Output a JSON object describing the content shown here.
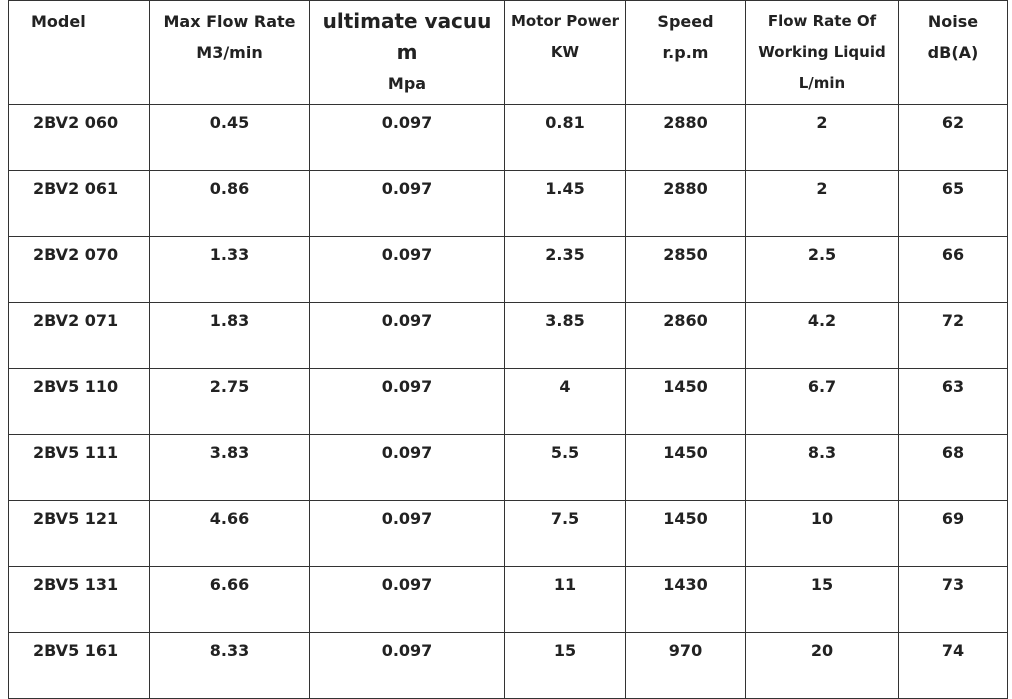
{
  "table": {
    "headers": [
      {
        "lines": [
          "Model"
        ]
      },
      {
        "lines": [
          "Max Flow Rate",
          "M3/min"
        ]
      },
      {
        "lines": [
          "ultimate vacuu",
          "m",
          "Mpa"
        ]
      },
      {
        "lines": [
          "Motor Power",
          "KW"
        ]
      },
      {
        "lines": [
          "Speed",
          "r.p.m"
        ]
      },
      {
        "lines": [
          "Flow Rate Of",
          "Working Liquid",
          "L/min"
        ]
      },
      {
        "lines": [
          "Noise",
          "dB(A)"
        ]
      }
    ],
    "rows": [
      [
        "2BV2 060",
        "0.45",
        "0.097",
        "0.81",
        "2880",
        "2",
        "62"
      ],
      [
        "2BV2 061",
        "0.86",
        "0.097",
        "1.45",
        "2880",
        "2",
        "65"
      ],
      [
        "2BV2 070",
        "1.33",
        "0.097",
        "2.35",
        "2850",
        "2.5",
        "66"
      ],
      [
        "2BV2 071",
        "1.83",
        "0.097",
        "3.85",
        "2860",
        "4.2",
        "72"
      ],
      [
        "2BV5 110",
        "2.75",
        "0.097",
        "4",
        "1450",
        "6.7",
        "63"
      ],
      [
        "2BV5 111",
        "3.83",
        "0.097",
        "5.5",
        "1450",
        "8.3",
        "68"
      ],
      [
        "2BV5 121",
        "4.66",
        "0.097",
        "7.5",
        "1450",
        "10",
        "69"
      ],
      [
        "2BV5 131",
        "6.66",
        "0.097",
        "11",
        "1430",
        "15",
        "73"
      ],
      [
        "2BV5 161",
        "8.33",
        "0.097",
        "15",
        "970",
        "20",
        "74"
      ]
    ]
  }
}
